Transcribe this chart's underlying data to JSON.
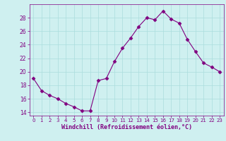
{
  "x": [
    0,
    1,
    2,
    3,
    4,
    5,
    6,
    7,
    8,
    9,
    10,
    11,
    12,
    13,
    14,
    15,
    16,
    17,
    18,
    19,
    20,
    21,
    22,
    23
  ],
  "y": [
    19.0,
    17.2,
    16.5,
    16.0,
    15.3,
    14.8,
    14.2,
    14.2,
    18.7,
    19.0,
    21.5,
    23.5,
    25.0,
    26.7,
    28.0,
    27.7,
    29.0,
    27.8,
    27.2,
    24.8,
    23.0,
    21.3,
    20.7,
    20.0
  ],
  "line_color": "#800080",
  "marker": "D",
  "marker_size": 2.5,
  "bg_color": "#cff0f0",
  "grid_color": "#aadddd",
  "xlabel": "Windchill (Refroidissement éolien,°C)",
  "xlabel_color": "#800080",
  "tick_color": "#800080",
  "ylim": [
    13.5,
    30.0
  ],
  "xlim": [
    -0.5,
    23.5
  ],
  "yticks": [
    14,
    16,
    18,
    20,
    22,
    24,
    26,
    28
  ],
  "xticks": [
    0,
    1,
    2,
    3,
    4,
    5,
    6,
    7,
    8,
    9,
    10,
    11,
    12,
    13,
    14,
    15,
    16,
    17,
    18,
    19,
    20,
    21,
    22,
    23
  ],
  "tick_fontsize": 5.0,
  "xlabel_fontsize": 6.0,
  "linewidth": 0.8
}
